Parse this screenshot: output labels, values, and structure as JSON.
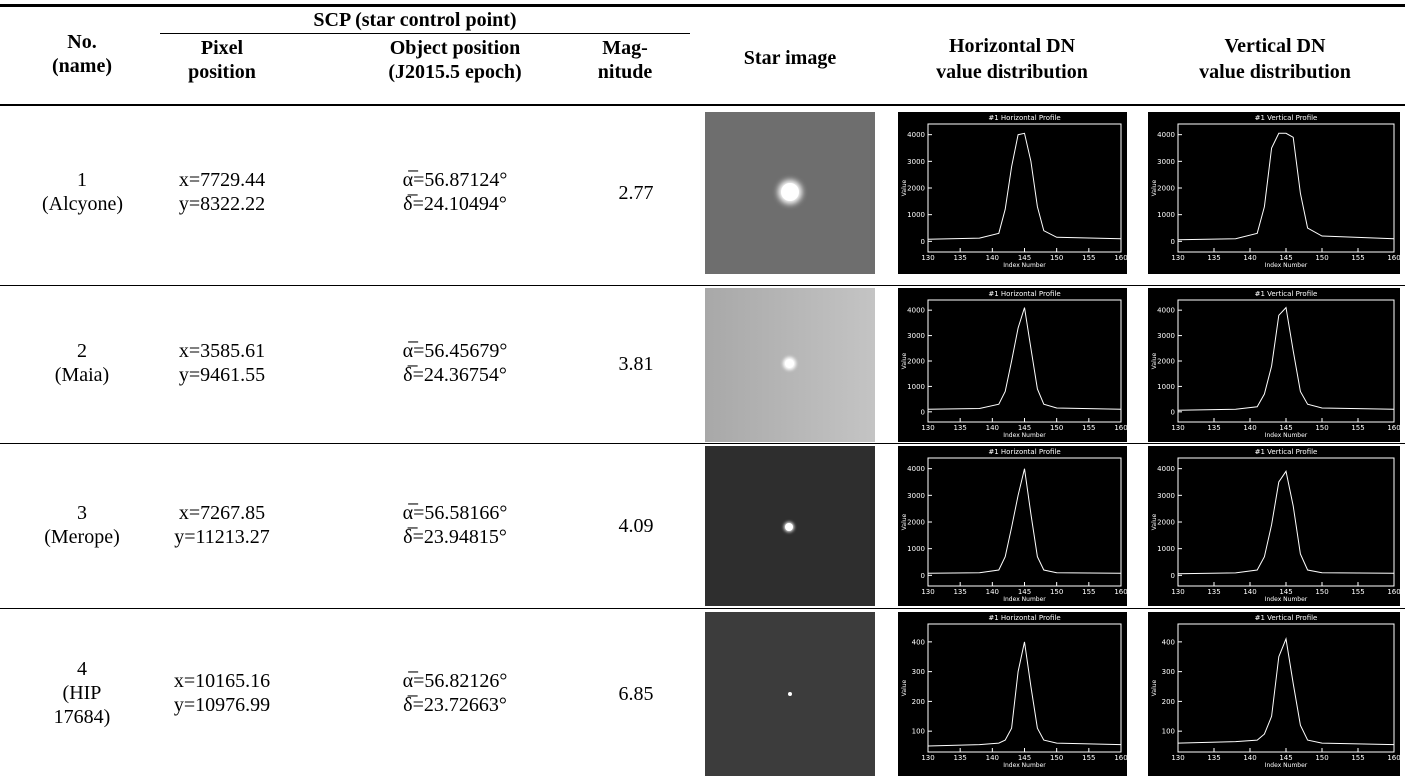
{
  "header": {
    "scp": "SCP (star control point)",
    "no": "No.",
    "name": "(name)",
    "pixel": [
      "Pixel",
      "position"
    ],
    "object": [
      "Object position",
      "(J2015.5 epoch)"
    ],
    "mag": [
      "Mag-",
      "nitude"
    ],
    "star": "Star image",
    "horizontal": [
      "Horizontal DN",
      "value distribution"
    ],
    "vertical": [
      "Vertical DN",
      "value distribution"
    ]
  },
  "rows": [
    {
      "no": "1",
      "name": "(Alcyone)",
      "x": "x=7729.44",
      "y": "y=8322.22",
      "ra": "α̅=56.87124°",
      "dec": "δ̅=24.10494°",
      "mag": "2.77",
      "horizontal": {
        "title": "#1 Horizontal Profile",
        "x_label": "Index Number",
        "y_label": "Value",
        "xlim": [
          130,
          160
        ],
        "ylim": [
          -400,
          4400
        ],
        "xticks": [
          130,
          135,
          140,
          145,
          150,
          155,
          160
        ],
        "yticks": [
          0,
          1000,
          2000,
          3000,
          4000
        ],
        "x": [
          130,
          138,
          141,
          142,
          143,
          144,
          145,
          146,
          147,
          148,
          150,
          160
        ],
        "values": [
          80,
          120,
          300,
          1200,
          2800,
          4000,
          4050,
          3000,
          1300,
          400,
          150,
          100
        ]
      },
      "vertical": {
        "title": "#1 Vertical Profile",
        "x_label": "Index Number",
        "y_label": "Value",
        "xlim": [
          130,
          160
        ],
        "ylim": [
          -400,
          4400
        ],
        "xticks": [
          130,
          135,
          140,
          145,
          150,
          155,
          160
        ],
        "yticks": [
          0,
          1000,
          2000,
          3000,
          4000
        ],
        "x": [
          130,
          138,
          141,
          142,
          143,
          144,
          145,
          146,
          147,
          148,
          150,
          160
        ],
        "values": [
          60,
          100,
          300,
          1300,
          3500,
          4050,
          4050,
          3900,
          1800,
          500,
          200,
          100
        ]
      }
    },
    {
      "no": "2",
      "name": "(Maia)",
      "x": "x=3585.61",
      "y": "y=9461.55",
      "ra": "α̅=56.45679°",
      "dec": "δ̅=24.36754°",
      "mag": "3.81",
      "horizontal": {
        "title": "#1 Horizontal Profile",
        "x_label": "Index Number",
        "y_label": "Value",
        "xlim": [
          130,
          160
        ],
        "ylim": [
          -400,
          4400
        ],
        "xticks": [
          130,
          135,
          140,
          145,
          150,
          155,
          160
        ],
        "yticks": [
          0,
          1000,
          2000,
          3000,
          4000
        ],
        "x": [
          130,
          138,
          141,
          142,
          143,
          144,
          145,
          146,
          147,
          148,
          150,
          160
        ],
        "values": [
          100,
          130,
          300,
          800,
          2000,
          3300,
          4100,
          2500,
          900,
          300,
          150,
          100
        ]
      },
      "vertical": {
        "title": "#1 Vertical Profile",
        "x_label": "Index Number",
        "y_label": "Value",
        "xlim": [
          130,
          160
        ],
        "ylim": [
          -400,
          4400
        ],
        "xticks": [
          130,
          135,
          140,
          145,
          150,
          155,
          160
        ],
        "yticks": [
          0,
          1000,
          2000,
          3000,
          4000
        ],
        "x": [
          130,
          138,
          141,
          142,
          143,
          144,
          145,
          146,
          147,
          148,
          150,
          160
        ],
        "values": [
          60,
          100,
          200,
          700,
          1800,
          3800,
          4100,
          2400,
          800,
          300,
          150,
          100
        ]
      }
    },
    {
      "no": "3",
      "name": "(Merope)",
      "x": "x=7267.85",
      "y": "y=11213.27",
      "ra": "α̅=56.58166°",
      "dec": "δ̅=23.94815°",
      "mag": "4.09",
      "horizontal": {
        "title": "#1 Horizontal Profile",
        "x_label": "Index Number",
        "y_label": "Value",
        "xlim": [
          130,
          160
        ],
        "ylim": [
          -400,
          4400
        ],
        "xticks": [
          130,
          135,
          140,
          145,
          150,
          155,
          160
        ],
        "yticks": [
          0,
          1000,
          2000,
          3000,
          4000
        ],
        "x": [
          130,
          138,
          141,
          142,
          143,
          144,
          145,
          146,
          147,
          148,
          150,
          160
        ],
        "values": [
          80,
          100,
          200,
          700,
          1800,
          3000,
          4000,
          2300,
          700,
          200,
          100,
          80
        ]
      },
      "vertical": {
        "title": "#1 Vertical Profile",
        "x_label": "Index Number",
        "y_label": "Value",
        "xlim": [
          130,
          160
        ],
        "ylim": [
          -400,
          4400
        ],
        "xticks": [
          130,
          135,
          140,
          145,
          150,
          155,
          160
        ],
        "yticks": [
          0,
          1000,
          2000,
          3000,
          4000
        ],
        "x": [
          130,
          138,
          141,
          142,
          143,
          144,
          145,
          146,
          147,
          148,
          150,
          160
        ],
        "values": [
          60,
          90,
          200,
          700,
          1900,
          3500,
          3900,
          2600,
          800,
          200,
          100,
          80
        ]
      }
    },
    {
      "no": "4",
      "name": "(HIP 17684)",
      "x": "x=10165.16",
      "y": "y=10976.99",
      "ra": "α̅=56.82126°",
      "dec": "δ̅=23.72663°",
      "mag": "6.85",
      "horizontal": {
        "title": "#1 Horizontal Profile",
        "x_label": "Index Number",
        "y_label": "Value",
        "xlim": [
          130,
          160
        ],
        "ylim": [
          30,
          460
        ],
        "xticks": [
          130,
          135,
          140,
          145,
          150,
          155,
          160
        ],
        "yticks": [
          100,
          200,
          300,
          400
        ],
        "x": [
          130,
          138,
          141,
          142,
          143,
          144,
          145,
          146,
          147,
          148,
          150,
          160
        ],
        "values": [
          50,
          55,
          60,
          70,
          110,
          300,
          400,
          250,
          110,
          70,
          60,
          55
        ]
      },
      "vertical": {
        "title": "#1 Vertical Profile",
        "x_label": "Index Number",
        "y_label": "Value",
        "xlim": [
          130,
          160
        ],
        "ylim": [
          30,
          460
        ],
        "xticks": [
          130,
          135,
          140,
          145,
          150,
          155,
          160
        ],
        "yticks": [
          100,
          200,
          300,
          400
        ],
        "x": [
          130,
          138,
          141,
          142,
          143,
          144,
          145,
          146,
          147,
          148,
          150,
          160
        ],
        "values": [
          60,
          65,
          70,
          90,
          150,
          350,
          410,
          260,
          120,
          70,
          60,
          55
        ]
      }
    }
  ]
}
